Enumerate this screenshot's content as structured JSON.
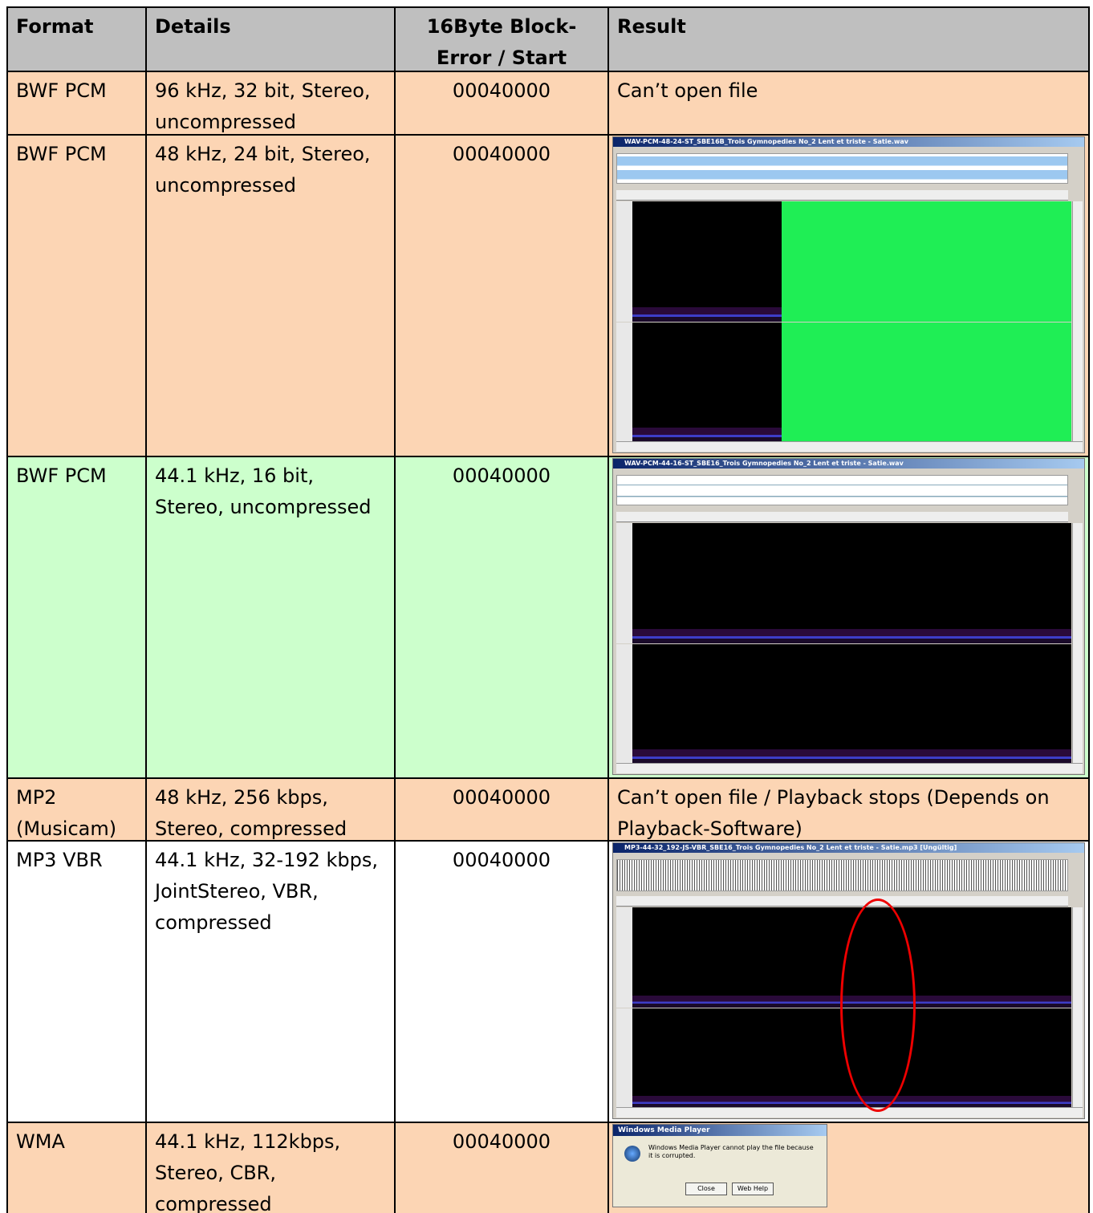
{
  "table": {
    "header": [
      "Format",
      "Details",
      "16Byte Block-Error / Start",
      "Result"
    ],
    "rows": [
      {
        "format": "BWF PCM",
        "details": "96 kHz, 32 bit, Stereo, uncompressed",
        "block_error": "00040000",
        "result": "Can’t open file",
        "color": "#fcd5b4"
      },
      {
        "format": "BWF PCM",
        "details": "48 kHz, 24 bit, Stereo, uncompressed",
        "block_error": "00040000",
        "screenshot_title": "WAV-PCM-48-24-ST_SBE16B_Trois Gymnopedies No_2 Lent et triste - Satie.wav",
        "color": "#fcd5b4"
      },
      {
        "format": "BWF PCM",
        "details": "44.1 kHz, 16 bit, Stereo, uncompressed",
        "block_error": "00040000",
        "screenshot_title": "WAV-PCM-44-16-ST_SBE16_Trois Gymnopedies No_2 Lent et triste - Satie.wav",
        "color": "#ccffcc"
      },
      {
        "format": "MP2 (Musicam)",
        "details": "48 kHz, 256 kbps, Stereo, compressed",
        "block_error": "00040000",
        "result": "Can’t open file / Playback stops (Depends on Playback-Software)",
        "color": "#fcd5b4"
      },
      {
        "format": "MP3 VBR",
        "details": "44.1 kHz, 32-192 kbps, JointStereo, VBR, compressed",
        "block_error": "00040000",
        "screenshot_title": "MP3-44-32_192-JS-VBR_SBE16_Trois Gymnopedies No_2 Lent et triste - Satie.mp3 [Ungültig]",
        "color": "#ffffff"
      },
      {
        "format": "WMA",
        "details": "44.1 kHz, 112kbps, Stereo, CBR, compressed",
        "block_error": "00040000",
        "dialog": {
          "title": "Windows Media Player",
          "message": "Windows Media Player cannot play the file because it is corrupted.",
          "buttons": [
            "Close",
            "Web Help"
          ]
        },
        "color": "#fcd5b4"
      }
    ],
    "header_color": "#bfbfbf"
  }
}
